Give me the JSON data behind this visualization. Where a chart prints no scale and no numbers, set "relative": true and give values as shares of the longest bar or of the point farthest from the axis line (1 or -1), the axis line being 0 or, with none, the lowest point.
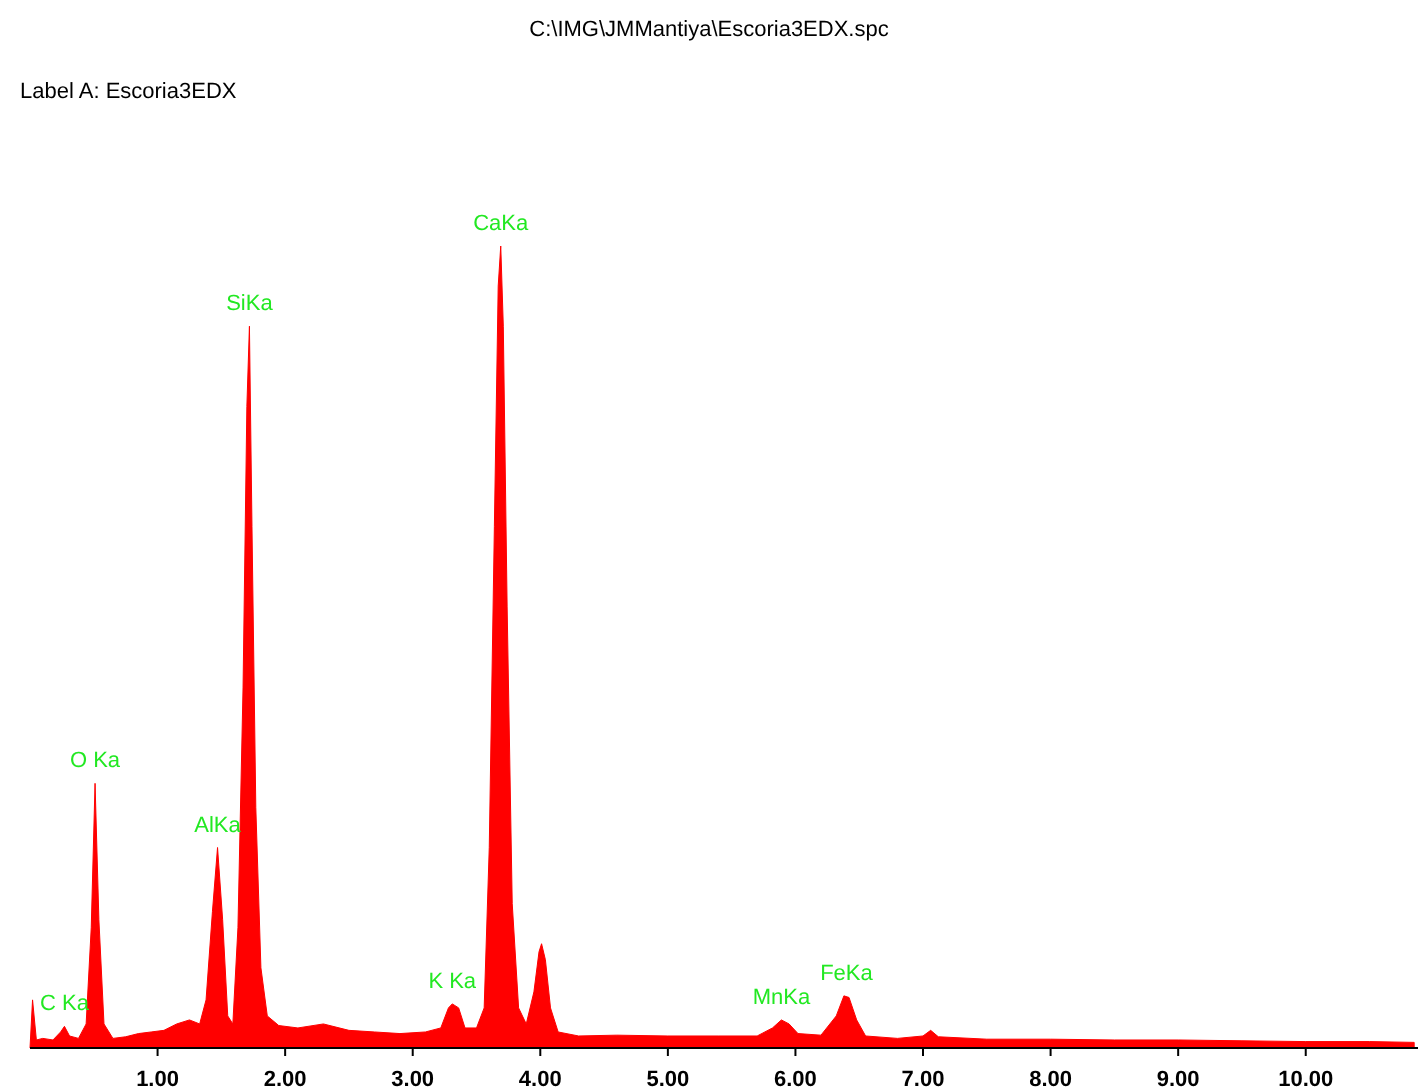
{
  "chart_data": {
    "type": "area",
    "title": "C:\\IMG\\JMMantiya\\Escoria3EDX.spc",
    "subtitle": "Label A: Escoria3EDX",
    "relative": true,
    "x": [
      0.0,
      0.02,
      0.05,
      0.1,
      0.18,
      0.24,
      0.27,
      0.31,
      0.38,
      0.44,
      0.48,
      0.51,
      0.54,
      0.58,
      0.65,
      0.75,
      0.85,
      0.95,
      1.05,
      1.15,
      1.25,
      1.33,
      1.38,
      1.43,
      1.47,
      1.51,
      1.55,
      1.59,
      1.63,
      1.67,
      1.7,
      1.72,
      1.74,
      1.77,
      1.81,
      1.86,
      1.95,
      2.1,
      2.3,
      2.5,
      2.7,
      2.9,
      3.1,
      3.22,
      3.28,
      3.31,
      3.36,
      3.41,
      3.5,
      3.56,
      3.6,
      3.64,
      3.67,
      3.69,
      3.71,
      3.74,
      3.78,
      3.83,
      3.89,
      3.95,
      3.99,
      4.01,
      4.04,
      4.08,
      4.14,
      4.3,
      4.6,
      5.0,
      5.4,
      5.7,
      5.82,
      5.89,
      5.95,
      6.02,
      6.2,
      6.32,
      6.38,
      6.42,
      6.48,
      6.55,
      6.8,
      7.0,
      7.06,
      7.12,
      7.5,
      8.0,
      8.5,
      9.0,
      9.5,
      10.0,
      10.5,
      10.85
    ],
    "series": [
      {
        "color": "#ff0000",
        "values": [
          0.0,
          0.06,
          0.01,
          0.012,
          0.01,
          0.02,
          0.027,
          0.015,
          0.012,
          0.03,
          0.15,
          0.33,
          0.16,
          0.03,
          0.012,
          0.014,
          0.018,
          0.02,
          0.022,
          0.03,
          0.035,
          0.03,
          0.06,
          0.17,
          0.25,
          0.16,
          0.04,
          0.03,
          0.15,
          0.45,
          0.8,
          0.9,
          0.65,
          0.3,
          0.1,
          0.04,
          0.028,
          0.025,
          0.03,
          0.022,
          0.02,
          0.018,
          0.02,
          0.025,
          0.05,
          0.055,
          0.05,
          0.025,
          0.025,
          0.05,
          0.25,
          0.65,
          0.95,
          1.0,
          0.9,
          0.55,
          0.18,
          0.05,
          0.03,
          0.07,
          0.12,
          0.13,
          0.11,
          0.05,
          0.02,
          0.015,
          0.016,
          0.015,
          0.015,
          0.015,
          0.025,
          0.035,
          0.03,
          0.018,
          0.016,
          0.04,
          0.065,
          0.063,
          0.035,
          0.015,
          0.012,
          0.015,
          0.022,
          0.014,
          0.011,
          0.011,
          0.01,
          0.01,
          0.009,
          0.008,
          0.008,
          0.007
        ]
      }
    ],
    "xlim": [
      0,
      10.88
    ],
    "xticks": [
      {
        "value": 1,
        "label": "1.00"
      },
      {
        "value": 2,
        "label": "2.00"
      },
      {
        "value": 3,
        "label": "3.00"
      },
      {
        "value": 4,
        "label": "4.00"
      },
      {
        "value": 5,
        "label": "5.00"
      },
      {
        "value": 6,
        "label": "6.00"
      },
      {
        "value": 7,
        "label": "7.00"
      },
      {
        "value": 8,
        "label": "8.00"
      },
      {
        "value": 9,
        "label": "9.00"
      },
      {
        "value": 10,
        "label": "10.00"
      }
    ],
    "annotations": [
      {
        "text": "C Ka",
        "x": 0.27,
        "y": 0.027
      },
      {
        "text": "O Ka",
        "x": 0.51,
        "y": 0.33
      },
      {
        "text": "AlKa",
        "x": 1.47,
        "y": 0.25
      },
      {
        "text": "SiKa",
        "x": 1.72,
        "y": 0.9
      },
      {
        "text": "K Ka",
        "x": 3.31,
        "y": 0.055
      },
      {
        "text": "CaKa",
        "x": 3.69,
        "y": 1.0
      },
      {
        "text": "MnKa",
        "x": 5.89,
        "y": 0.035
      },
      {
        "text": "FeKa",
        "x": 6.4,
        "y": 0.065
      }
    ],
    "grid": false
  }
}
